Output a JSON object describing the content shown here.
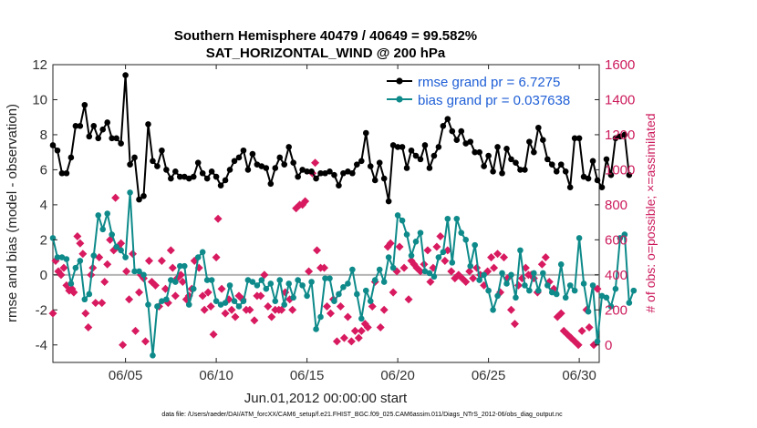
{
  "chart_data": {
    "type": "line",
    "title": "Southern Hemisphere 40479 / 40649 = 99.582%",
    "subtitle": "SAT_HORIZONTAL_WIND @ 200 hPa",
    "xlabel": "Jun.01,2012 00:00:00 start",
    "ylabel": "rmse and bias (model - observation)",
    "ylabel_right": "# of obs: o=possible; ×=assimilated",
    "footer": "data file: /Users/raeder/DAI/ATM_forcXX/CAM6_setup/f.e21.FHIST_BGC.f09_025.CAM6assim.011/Diags_NTrS_2012-06/obs_diag_output.nc",
    "xlim": [
      1.0,
      31.1
    ],
    "ylim": [
      -5,
      12
    ],
    "ylim_right": [
      -100,
      1600
    ],
    "x_tick_values": [
      5,
      10,
      15,
      20,
      25,
      30
    ],
    "x_tick_labels": [
      "06/05",
      "06/10",
      "06/15",
      "06/20",
      "06/25",
      "06/30"
    ],
    "y_ticks": [
      -4,
      -2,
      0,
      2,
      4,
      6,
      8,
      10,
      12
    ],
    "y_ticks_right": [
      0,
      200,
      400,
      600,
      800,
      1000,
      1200,
      1400,
      1600
    ],
    "colors": {
      "rmse": "#000000",
      "bias": "#0e8a8a",
      "obs": "#d81b60",
      "zero_line": "#b4b4b4"
    },
    "legend_location": "top-right",
    "legend": [
      {
        "name": "rmse",
        "label": "rmse grand pr = 6.7275"
      },
      {
        "name": "bias",
        "label": "bias grand pr = 0.037638"
      }
    ],
    "x_step": 0.25,
    "rmse": [
      7.4,
      7.1,
      5.8,
      5.8,
      6.7,
      8.5,
      8.5,
      9.7,
      7.9,
      8.5,
      7.8,
      8.3,
      8.7,
      7.8,
      7.8,
      7.5,
      11.4,
      6.3,
      6.7,
      4.3,
      4.5,
      8.6,
      6.5,
      6.2,
      7.1,
      6.0,
      5.5,
      5.9,
      5.6,
      5.6,
      5.5,
      5.6,
      6.4,
      5.8,
      5.5,
      5.9,
      5.6,
      5.1,
      5.4,
      6.0,
      6.5,
      6.7,
      7.1,
      6.0,
      6.9,
      6.3,
      6.2,
      6.1,
      5.2,
      6.1,
      6.7,
      6.3,
      7.3,
      6.4,
      5.6,
      6.0,
      5.9,
      5.9,
      5.5,
      5.8,
      5.8,
      5.9,
      5.7,
      5.1,
      5.8,
      5.9,
      5.8,
      6.3,
      6.5,
      8.1,
      6.2,
      5.4,
      6.4,
      5.5,
      4.2,
      7.4,
      7.3,
      7.3,
      6.1,
      7.1,
      6.8,
      6.6,
      7.4,
      6.1,
      6.8,
      7.3,
      8.5,
      8.9,
      8.2,
      7.7,
      8.2,
      7.5,
      7.6,
      7.0,
      7.0,
      6.2,
      6.8,
      5.9,
      7.3,
      5.8,
      7.2,
      6.6,
      6.4,
      6.0,
      6.0,
      7.6,
      7.0,
      8.4,
      7.7,
      6.6,
      6.3,
      5.9,
      6.3,
      5.9,
      5.0,
      7.8,
      7.8,
      5.6,
      5.5,
      6.5,
      5.4,
      5.0,
      6.6,
      5.7,
      7.8,
      7.9,
      8.0,
      5.7
    ],
    "bias": [
      2.1,
      1.0,
      1.0,
      0.9,
      -0.5,
      0.4,
      0.8,
      -1.4,
      -1.1,
      1.1,
      3.4,
      2.6,
      3.5,
      2.3,
      1.6,
      1.4,
      1.0,
      4.7,
      0.2,
      0.2,
      0.0,
      -1.7,
      -4.6,
      -1.8,
      -1.5,
      -1.4,
      -0.3,
      -0.4,
      0.5,
      0.5,
      -1.7,
      -0.8,
      1.0,
      1.3,
      -0.3,
      -0.3,
      -1.5,
      -1.7,
      -1.6,
      -0.6,
      -1.5,
      -1.8,
      -1.5,
      -0.3,
      -0.4,
      -0.6,
      -0.3,
      -0.8,
      -0.5,
      -1.5,
      -0.3,
      -1.7,
      -0.5,
      -1.3,
      -0.3,
      -0.6,
      -1.2,
      -0.4,
      -3.1,
      -2.4,
      -0.2,
      -0.2,
      -1.5,
      -1.1,
      -0.7,
      -0.5,
      0.3,
      -1.1,
      -2.5,
      -0.9,
      -1.5,
      -0.3,
      0.3,
      -0.4,
      1.0,
      0.4,
      3.4,
      3.1,
      2.3,
      1.1,
      1.9,
      2.4,
      0.2,
      0.1,
      -0.1,
      1.0,
      1.3,
      3.2,
      0.7,
      3.2,
      2.4,
      2.0,
      0.5,
      1.7,
      -0.3,
      0.0,
      -0.9,
      -2.0,
      -1.2,
      0.1,
      -0.5,
      0.0,
      -1.3,
      1.4,
      -0.6,
      -0.9,
      0.1,
      -0.9,
      0.1,
      -0.6,
      -1.0,
      -1.1,
      0.6,
      -1.3,
      -0.6,
      -0.9,
      2.1,
      -0.5,
      -2.1,
      -0.6,
      -3.8,
      -1.2,
      -1.3,
      -1.8,
      -0.8,
      2.1,
      2.3,
      -1.6,
      -0.9
    ],
    "obs_assimilated": [
      [
        1.0,
        180
      ],
      [
        1.15,
        480
      ],
      [
        1.3,
        420
      ],
      [
        1.45,
        400
      ],
      [
        1.6,
        440
      ],
      [
        1.75,
        340
      ],
      [
        1.9,
        310
      ],
      [
        2.05,
        320
      ],
      [
        2.15,
        300
      ],
      [
        2.35,
        620
      ],
      [
        2.5,
        580
      ],
      [
        2.65,
        520
      ],
      [
        2.8,
        180
      ],
      [
        2.95,
        100
      ],
      [
        3.1,
        400
      ],
      [
        3.2,
        440
      ],
      [
        3.35,
        240
      ],
      [
        3.55,
        500
      ],
      [
        3.7,
        240
      ],
      [
        3.85,
        360
      ],
      [
        4.0,
        460
      ],
      [
        4.15,
        600
      ],
      [
        4.35,
        540
      ],
      [
        4.45,
        840
      ],
      [
        4.6,
        560
      ],
      [
        4.75,
        580
      ],
      [
        4.85,
        0
      ],
      [
        5.05,
        420
      ],
      [
        5.2,
        260
      ],
      [
        5.4,
        520
      ],
      [
        5.55,
        80
      ],
      [
        5.75,
        300
      ],
      [
        5.85,
        400
      ],
      [
        6.0,
        380
      ],
      [
        6.1,
        20
      ],
      [
        6.3,
        480
      ],
      [
        6.45,
        360
      ],
      [
        6.65,
        340
      ],
      [
        6.85,
        220
      ],
      [
        7.0,
        480
      ],
      [
        7.2,
        320
      ],
      [
        7.35,
        240
      ],
      [
        7.5,
        540
      ],
      [
        7.6,
        440
      ],
      [
        7.75,
        280
      ],
      [
        7.85,
        380
      ],
      [
        8.05,
        400
      ],
      [
        8.15,
        360
      ],
      [
        8.35,
        260
      ],
      [
        8.5,
        280
      ],
      [
        8.65,
        320
      ],
      [
        8.8,
        480
      ],
      [
        9.05,
        440
      ],
      [
        9.25,
        280
      ],
      [
        9.35,
        200
      ],
      [
        9.55,
        300
      ],
      [
        9.7,
        220
      ],
      [
        9.85,
        60
      ],
      [
        10.0,
        500
      ],
      [
        10.1,
        720
      ],
      [
        10.3,
        320
      ],
      [
        10.5,
        180
      ],
      [
        10.7,
        260
      ],
      [
        10.85,
        200
      ],
      [
        11.05,
        160
      ],
      [
        11.25,
        280
      ],
      [
        11.45,
        260
      ],
      [
        11.65,
        200
      ],
      [
        11.85,
        200
      ],
      [
        12.1,
        140
      ],
      [
        12.25,
        280
      ],
      [
        12.45,
        280
      ],
      [
        12.65,
        400
      ],
      [
        12.85,
        220
      ],
      [
        13.05,
        160
      ],
      [
        13.25,
        200
      ],
      [
        13.45,
        200
      ],
      [
        13.6,
        200
      ],
      [
        13.8,
        300
      ],
      [
        14.05,
        260
      ],
      [
        14.2,
        200
      ],
      [
        14.4,
        780
      ],
      [
        14.6,
        800
      ],
      [
        14.75,
        800
      ],
      [
        14.9,
        820
      ],
      [
        15.1,
        420
      ],
      [
        15.3,
        980
      ],
      [
        15.45,
        1040
      ],
      [
        15.55,
        540
      ],
      [
        15.75,
        440
      ],
      [
        15.95,
        440
      ],
      [
        16.1,
        220
      ],
      [
        16.3,
        180
      ],
      [
        16.45,
        260
      ],
      [
        16.65,
        20
      ],
      [
        16.85,
        220
      ],
      [
        17.05,
        40
      ],
      [
        17.25,
        160
      ],
      [
        17.45,
        20
      ],
      [
        17.65,
        80
      ],
      [
        17.85,
        40
      ],
      [
        18.0,
        80
      ],
      [
        18.2,
        120
      ],
      [
        18.35,
        100
      ],
      [
        18.6,
        220
      ],
      [
        18.75,
        360
      ],
      [
        19.05,
        100
      ],
      [
        19.25,
        200
      ],
      [
        19.45,
        560
      ],
      [
        19.6,
        580
      ],
      [
        19.75,
        300
      ],
      [
        19.95,
        420
      ],
      [
        20.1,
        560
      ],
      [
        20.35,
        440
      ],
      [
        20.6,
        260
      ],
      [
        20.75,
        480
      ],
      [
        20.9,
        460
      ],
      [
        21.05,
        440
      ],
      [
        21.25,
        420
      ],
      [
        21.45,
        460
      ],
      [
        21.65,
        540
      ],
      [
        21.8,
        360
      ],
      [
        21.95,
        440
      ],
      [
        22.15,
        560
      ],
      [
        22.35,
        620
      ],
      [
        22.6,
        480
      ],
      [
        22.75,
        540
      ],
      [
        22.95,
        420
      ],
      [
        23.15,
        380
      ],
      [
        23.35,
        400
      ],
      [
        23.55,
        380
      ],
      [
        23.75,
        360
      ],
      [
        23.95,
        420
      ],
      [
        24.15,
        380
      ],
      [
        24.35,
        440
      ],
      [
        24.55,
        400
      ],
      [
        24.75,
        340
      ],
      [
        24.95,
        420
      ],
      [
        25.15,
        500
      ],
      [
        25.3,
        440
      ],
      [
        25.5,
        520
      ],
      [
        25.65,
        300
      ],
      [
        25.85,
        500
      ],
      [
        26.05,
        380
      ],
      [
        26.25,
        200
      ],
      [
        26.45,
        120
      ],
      [
        26.65,
        340
      ],
      [
        26.85,
        380
      ],
      [
        27.05,
        440
      ],
      [
        27.2,
        400
      ],
      [
        27.35,
        400
      ],
      [
        27.5,
        380
      ],
      [
        27.7,
        300
      ],
      [
        27.95,
        460
      ],
      [
        28.15,
        500
      ],
      [
        28.35,
        360
      ],
      [
        28.6,
        320
      ],
      [
        28.8,
        160
      ],
      [
        29.0,
        180
      ],
      [
        29.15,
        80
      ],
      [
        29.35,
        60
      ],
      [
        29.55,
        40
      ],
      [
        29.75,
        20
      ],
      [
        29.95,
        0
      ],
      [
        30.15,
        80
      ],
      [
        30.4,
        200
      ],
      [
        30.55,
        100
      ],
      [
        30.8,
        0
      ],
      [
        31.0,
        320
      ]
    ]
  }
}
